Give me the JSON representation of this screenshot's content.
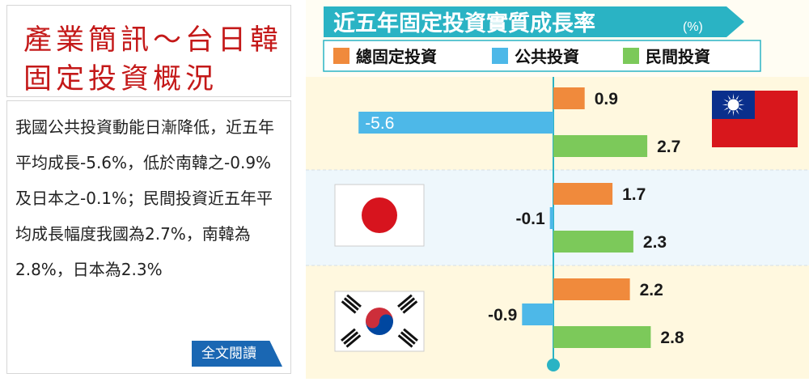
{
  "article": {
    "title_line1": "產業簡訊～台日韓",
    "title_line2": "固定投資概況",
    "body": "我國公共投資動能日漸降低，近五年平均成長-5.6%，低於南韓之-0.9%及日本之-0.1%；民間投資近五年平均成長幅度我國為2.7%，南韓為2.8%，日本為2.3%",
    "read_more": "全文閱讀"
  },
  "colors": {
    "title_red": "#c41919",
    "total": "#f08a3c",
    "public": "#4db8e8",
    "private": "#7cc95a",
    "header_bg": "#2ab3c4",
    "button_blue": "#1a67b3"
  },
  "chart_data": {
    "type": "bar",
    "orientation": "horizontal",
    "title": "近五年固定投資實質成長率",
    "unit": "(%)",
    "categories": [
      "台灣",
      "日本",
      "南韓"
    ],
    "category_icons": [
      "taiwan-flag-icon",
      "japan-flag-icon",
      "korea-flag-icon"
    ],
    "series": [
      {
        "name": "總固定投資",
        "values": [
          0.9,
          1.7,
          2.2
        ]
      },
      {
        "name": "公共投資",
        "values": [
          -5.6,
          -0.1,
          -0.9
        ]
      },
      {
        "name": "民間投資",
        "values": [
          2.7,
          2.3,
          2.8
        ]
      }
    ],
    "value_labels": [
      [
        "0.9",
        "-5.6",
        "2.7"
      ],
      [
        "1.7",
        "-0.1",
        "2.3"
      ],
      [
        "2.2",
        "-0.9",
        "2.8"
      ]
    ],
    "legend_position": "top",
    "grid": false
  }
}
